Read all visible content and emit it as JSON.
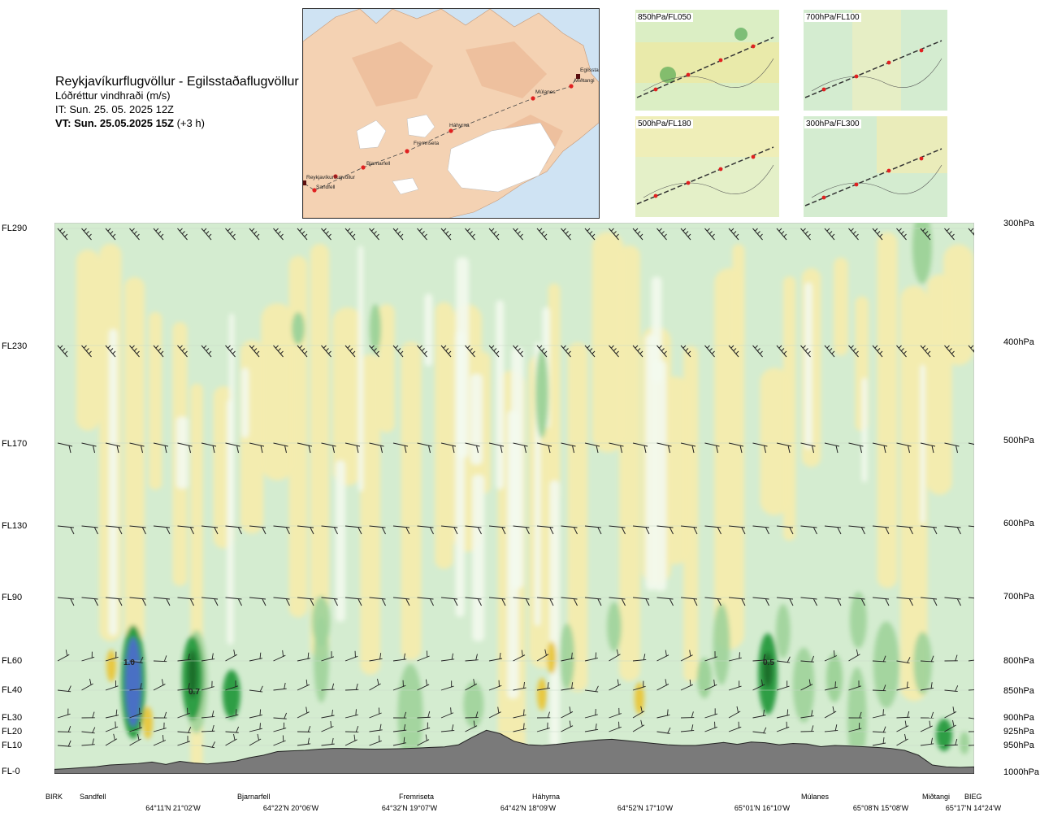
{
  "header": {
    "route": "Reykjavíkurflugvöllur - Egilsstaðaflugvöllur",
    "subtitle": "Lóðréttur vindhraði (m/s)",
    "it": "IT: Sun. 25. 05. 2025 12Z",
    "vt_bold": "VT: Sun. 25.05.2025 15Z",
    "vt_rest": " (+3 h)"
  },
  "map": {
    "waypoints": [
      "Reykjavíkurflugvöllur",
      "Sandfell",
      "Bjarnarfell",
      "Fremriseta",
      "Háhyrna",
      "Múlanes",
      "Miðtangi",
      "Egilsstaðir"
    ]
  },
  "thumbs": [
    {
      "label": "850hPa/FL050"
    },
    {
      "label": "700hPa/FL100"
    },
    {
      "label": "500hPa/FL180"
    },
    {
      "label": "300hPa/FL300"
    }
  ],
  "colors": {
    "terrain": "#7a7a7a",
    "up_light": "#d4ecd0",
    "up_mid": "#9fd39a",
    "up_strong": "#2f9e44",
    "up_max": "#1f6e2a",
    "core": "#4a6fc4",
    "down_light": "#f4ecae",
    "down_mid": "#e8c840",
    "route_dot": "#e02020"
  },
  "chart_data": {
    "type": "heatmap",
    "left_levels": [
      "FL290",
      "FL230",
      "FL170",
      "FL130",
      "FL90",
      "FL60",
      "FL40",
      "FL30",
      "FL20",
      "FL10",
      "FL-0"
    ],
    "right_levels": [
      "300hPa",
      "400hPa",
      "500hPa",
      "600hPa",
      "700hPa",
      "800hPa",
      "850hPa",
      "900hPa",
      "925hPa",
      "950hPa",
      "1000hPa"
    ],
    "points": [
      "BIRK",
      "Sandfell",
      "Bjarnarfell",
      "Fremriseta",
      "Háhyrna",
      "Múlanes",
      "Miðtangi",
      "BIEG"
    ],
    "coords": [
      "64°11'N 21°02'W",
      "64°22'N 20°06'W",
      "64°32'N 19°07'W",
      "64°42'N 18°09'W",
      "64°52'N 17°10'W",
      "65°01'N 16°10'W",
      "65°08'N 15°08'W",
      "65°17'N 14°24'W"
    ],
    "value_labels": [
      "1.0",
      "0.7",
      "0.5"
    ],
    "terrain_profile": [
      0.02,
      0.05,
      0.09,
      0.13,
      0.2,
      0.23,
      0.26,
      0.32,
      0.22,
      0.35,
      0.28,
      0.24,
      0.3,
      0.36,
      0.5,
      0.6,
      0.75,
      0.78,
      0.8,
      0.85,
      0.88,
      0.88,
      0.86,
      0.85,
      0.86,
      0.87,
      0.89,
      0.92,
      0.94,
      1.05,
      1.6,
      2.1,
      1.85,
      1.3,
      1.05,
      1.0,
      1.08,
      1.2,
      1.3,
      1.4,
      1.45,
      1.35,
      1.25,
      1.15,
      1.05,
      1.0,
      1.0,
      1.1,
      1.22,
      1.08,
      1.25,
      1.2,
      1.05,
      1.15,
      1.1,
      0.95,
      1.0,
      0.98,
      0.95,
      0.92,
      0.88,
      0.8,
      0.6,
      0.2,
      0.12,
      0.1,
      0.12
    ]
  }
}
